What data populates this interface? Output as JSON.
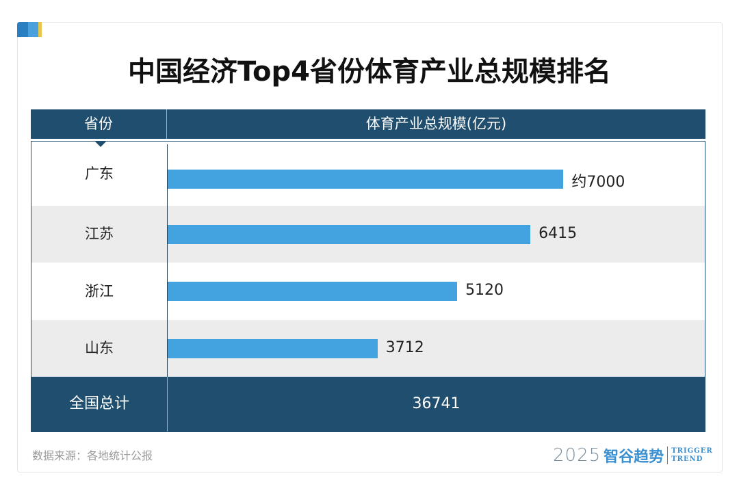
{
  "title": "中国经济Top4省份体育产业总规模排名",
  "header": {
    "col1": "省份",
    "col2": "体育产业总规模(亿元)"
  },
  "chart_data": {
    "type": "bar",
    "orientation": "horizontal",
    "title": "中国经济Top4省份体育产业总规模排名",
    "xlabel": "体育产业总规模(亿元)",
    "ylabel": "省份",
    "categories": [
      "广东",
      "江苏",
      "浙江",
      "山东"
    ],
    "values": [
      7000,
      6415,
      5120,
      3712
    ],
    "data_labels": [
      "约7000",
      "6415",
      "5120",
      "3712"
    ],
    "xlim": [
      0,
      9500
    ],
    "bar_color": "#43a3e0"
  },
  "total": {
    "label": "全国总计",
    "value": "36741"
  },
  "source": "数据来源：各地统计公报",
  "logo": {
    "year": "2025",
    "name": "智谷趋势",
    "en1": "TRIGGER",
    "en2": "TREND"
  },
  "colors": {
    "header": "#1f4e6e",
    "bar": "#43a3e0",
    "stripe": "#ececec"
  }
}
